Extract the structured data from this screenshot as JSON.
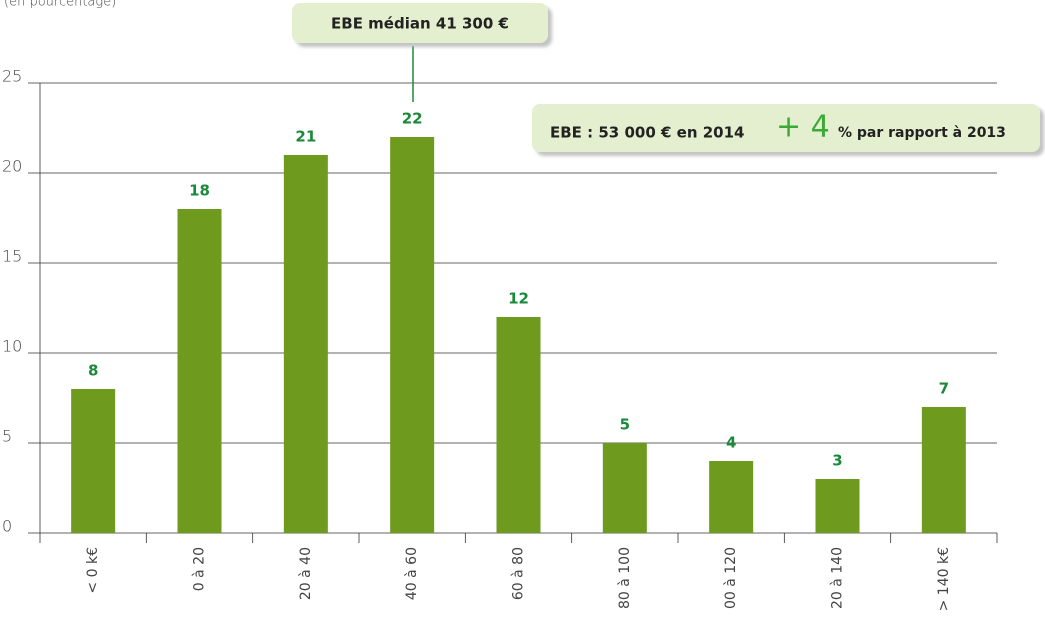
{
  "chart_data": {
    "type": "bar",
    "subtitle": "(en pourcentage)",
    "categories": [
      "< 0 k€",
      "0 à 20",
      "20 à 40",
      "40 à 60",
      "60 à 80",
      "80 à 100",
      "00 à 120",
      "20 à 140",
      "> 140 k€"
    ],
    "values": [
      8,
      18,
      21,
      22,
      12,
      5,
      4,
      3,
      7
    ],
    "color": "#6e9a1e",
    "value_label_color": "#1a8a3a",
    "ylim": [
      0,
      25
    ],
    "yticks": [
      0,
      5,
      10,
      15,
      20,
      25
    ],
    "grid": true,
    "annotations": {
      "median": "EBE médian 41 300 €",
      "summary": "EBE : 53 000 € en 2014",
      "change": "+ 4",
      "change_text": "% par rapport à 2013"
    }
  }
}
